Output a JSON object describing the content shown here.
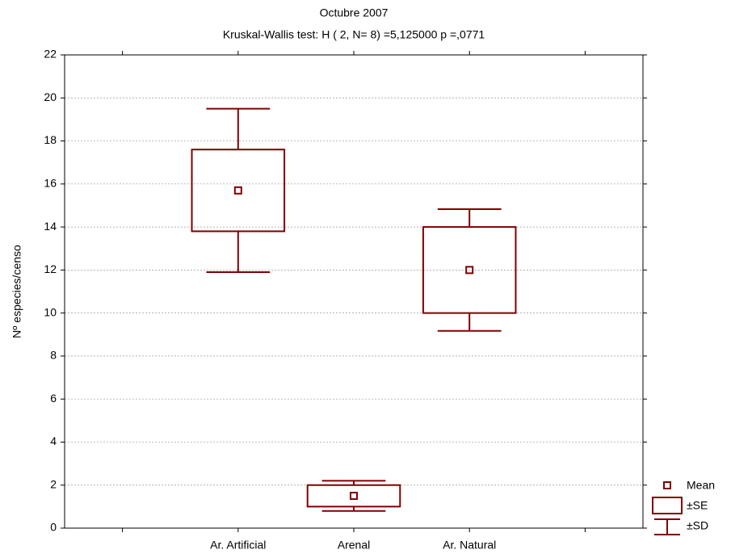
{
  "chart_data": {
    "type": "box",
    "title": "Octubre 2007",
    "subtitle": "Kruskal-Wallis test: H ( 2, N= 8) =5,125000 p =,0771",
    "y_label": "Nº especies/censo",
    "categories": [
      null,
      "Ar. Artificial",
      "Arenal",
      "Ar. Natural",
      null
    ],
    "means": [
      null,
      15.7,
      1.5,
      12,
      null
    ],
    "se": [
      null,
      1.9,
      0.5,
      2,
      null
    ],
    "sd": [
      null,
      3.8,
      0.7,
      2.83,
      null
    ],
    "legend": [
      "Mean",
      "±SE",
      "±SD"
    ],
    "color": "#800000",
    "ylim": [
      0,
      22
    ],
    "yticks": [
      0,
      2,
      4,
      6,
      8,
      10,
      12,
      14,
      16,
      18,
      20,
      22
    ],
    "grid": true
  }
}
